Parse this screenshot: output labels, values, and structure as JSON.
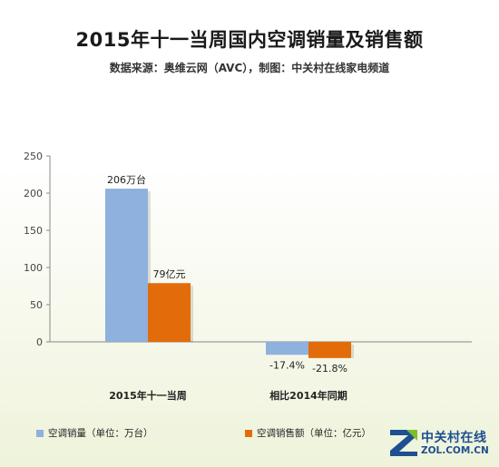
{
  "title": "2015年十一当周国内空调销量及销售额",
  "subtitle": "数据来源：奥维云网（AVC），制图：中关村在线家电频道",
  "colors": {
    "sales_volume": "#8eb1dd",
    "sales_amount": "#e36c0a",
    "axis": "#888888"
  },
  "chart_data": {
    "type": "bar",
    "categories": [
      "2015年十一当周",
      "相比2014年同期"
    ],
    "series": [
      {
        "name": "空调销量（单位：万台）",
        "values": [
          206,
          -17.4
        ],
        "labels": [
          "206万台",
          "-17.4%"
        ]
      },
      {
        "name": "空调销售额（单位：亿元）",
        "values": [
          79,
          -21.8
        ],
        "labels": [
          "79亿元",
          "-21.8%"
        ]
      }
    ],
    "ylim": [
      -20,
      250
    ],
    "yticks": [
      "0",
      "50",
      "100",
      "150",
      "200",
      "250"
    ],
    "ytick_values": [
      0,
      50,
      100,
      150,
      200,
      250
    ],
    "grid": false,
    "legend_position": "bottom-left"
  },
  "legend": [
    {
      "label": "空调销量（单位：万台）",
      "icon": "blue-square"
    },
    {
      "label": "空调销售额（单位：亿元）",
      "icon": "orange-square"
    }
  ],
  "logo": {
    "cn": "中关村在线",
    "en": "ZOL.COM.CN"
  }
}
